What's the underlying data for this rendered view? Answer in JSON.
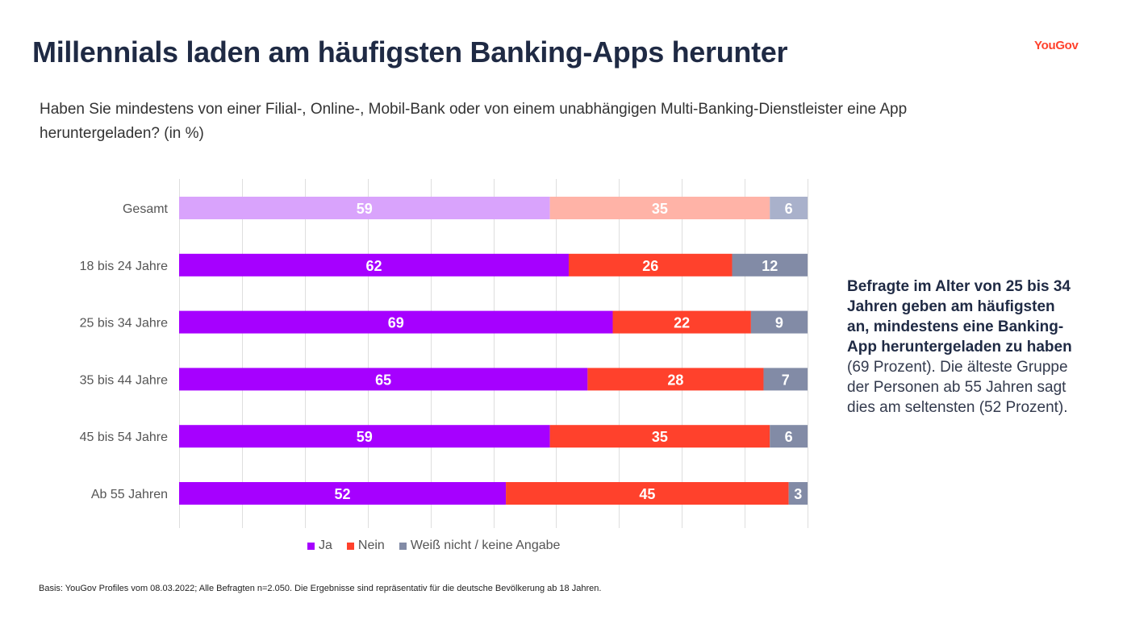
{
  "header": {
    "title": "Millennials laden am häufigsten Banking-Apps herunter",
    "logo": "YouGov",
    "subtitle": "Haben Sie mindestens von einer Filial-, Online-, Mobil-Bank oder von einem unabhängigen Multi-Banking-Dienstleister eine App heruntergeladen? (in %)"
  },
  "annotation": {
    "bold": "Befragte im Alter von 25 bis 34 Jahren geben am häufigsten an, mindestens eine Banking-App heruntergeladen zu haben",
    "rest": " (69 Prozent). Die älteste Gruppe der Personen ab 55 Jahren sagt dies am seltensten (52 Prozent)."
  },
  "footnote": "Basis: YouGov Profiles vom 08.03.2022; Alle Befragten n=2.050. Die Ergebnisse sind repräsentativ für die deutsche Bevölkerung ab 18 Jahren.",
  "chart_data": {
    "type": "bar",
    "orientation": "horizontal",
    "stacked": true,
    "title": "Haben Sie mindestens von einer Filial-, Online-, Mobil-Bank oder von einem unabhängigen Multi-Banking-Dienstleister eine App heruntergeladen? (in %)",
    "xlabel": "",
    "ylabel": "",
    "xlim": [
      0,
      100
    ],
    "grid": true,
    "legend_position": "bottom",
    "categories": [
      "Gesamt",
      "18 bis 24 Jahre",
      "25 bis 34 Jahre",
      "35 bis 44 Jahre",
      "45 bis 54 Jahre",
      "Ab 55 Jahren"
    ],
    "series": [
      {
        "name": "Ja",
        "color": "#a600ff",
        "highlight_color": "#d9a3fc",
        "values": [
          59,
          62,
          69,
          65,
          59,
          52
        ]
      },
      {
        "name": "Nein",
        "color": "#ff412c",
        "highlight_color": "#ffb3a7",
        "values": [
          35,
          26,
          22,
          28,
          35,
          45
        ]
      },
      {
        "name": "Weiß nicht / keine Angabe",
        "color": "#828ba6",
        "highlight_color": "#a9b1cb",
        "values": [
          6,
          12,
          9,
          7,
          6,
          3
        ]
      }
    ],
    "highlighted_category": "Gesamt"
  }
}
